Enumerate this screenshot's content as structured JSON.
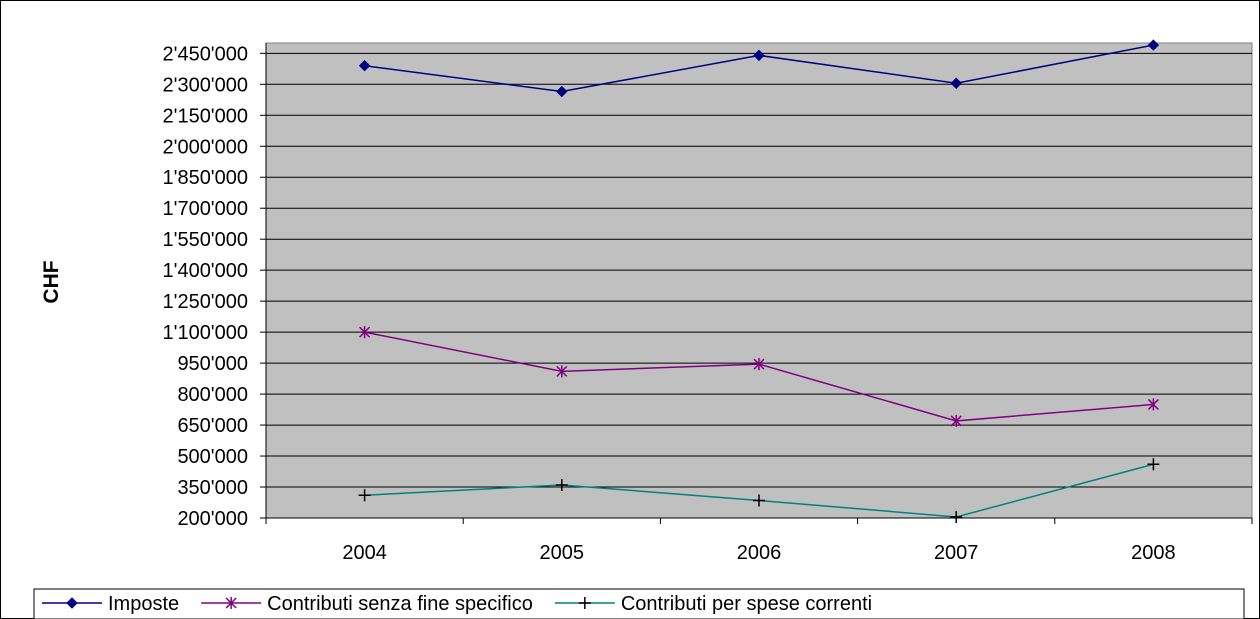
{
  "chart_data": {
    "type": "line",
    "ylabel": "CHF",
    "categories": [
      "2004",
      "2005",
      "2006",
      "2007",
      "2008"
    ],
    "ylim": [
      200000,
      2500000
    ],
    "yticks": [
      200000,
      350000,
      500000,
      650000,
      800000,
      950000,
      1100000,
      1250000,
      1400000,
      1550000,
      1700000,
      1850000,
      2000000,
      2150000,
      2300000,
      2450000
    ],
    "ytick_labels": [
      "200'000",
      "350'000",
      "500'000",
      "650'000",
      "800'000",
      "950'000",
      "1'100'000",
      "1'250'000",
      "1'400'000",
      "1'550'000",
      "1'700'000",
      "1'850'000",
      "2'000'000",
      "2'150'000",
      "2'300'000",
      "2'450'000"
    ],
    "grid": true,
    "plot_background": "#C0C0C0",
    "legend_position": "bottom",
    "series": [
      {
        "name": "Imposte",
        "values": [
          2390000,
          2265000,
          2440000,
          2305000,
          2490000
        ],
        "color": "#000080",
        "marker": "diamond"
      },
      {
        "name": "Contributi senza fine specifico",
        "values": [
          1100000,
          910000,
          945000,
          670000,
          750000
        ],
        "color": "#800080",
        "marker": "asterisk"
      },
      {
        "name": "Contributi per spese correnti",
        "values": [
          310000,
          360000,
          285000,
          205000,
          460000
        ],
        "color": "#008080",
        "marker": "plus"
      }
    ]
  }
}
